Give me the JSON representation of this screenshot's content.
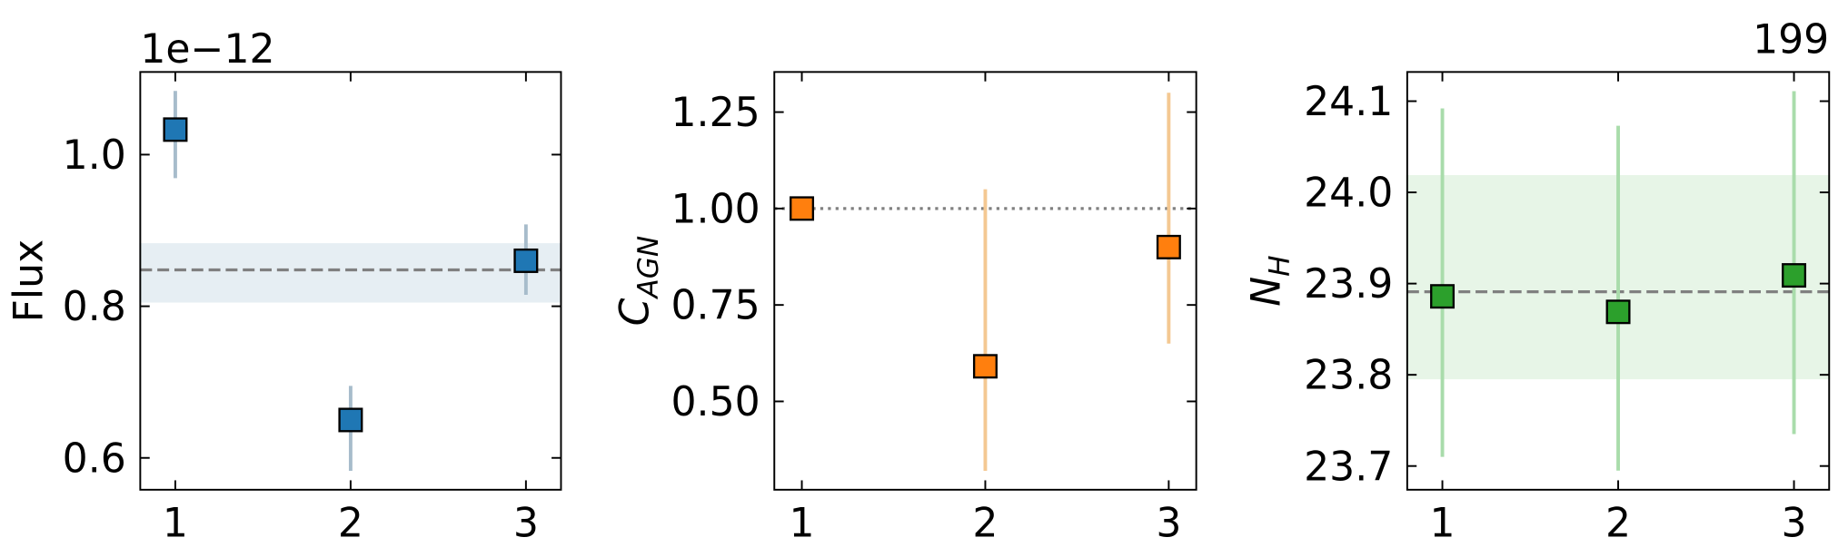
{
  "chart_data": [
    {
      "type": "scatter",
      "ylabel": {
        "text": "Flux"
      },
      "offset_label": "1e−12",
      "x": [
        1,
        2,
        3
      ],
      "values": [
        1.033,
        0.65,
        0.86
      ],
      "yerr_low": [
        0.064,
        0.067,
        0.045
      ],
      "yerr_high": [
        0.051,
        0.045,
        0.048
      ],
      "color": "#1f77b4",
      "errorbar_color": "#a7bccb",
      "hline": {
        "value": 0.848,
        "style": "dashed",
        "color": "#808080"
      },
      "band": {
        "range": [
          0.806,
          0.882
        ],
        "color": "#e6eef3"
      },
      "xlim": [
        0.8,
        3.2
      ],
      "xticks": [
        1,
        2,
        3
      ],
      "ylim": [
        0.558,
        1.109
      ],
      "yticks": [
        {
          "value": 0.6,
          "label": "0.6"
        },
        {
          "value": 0.8,
          "label": "0.8"
        },
        {
          "value": 1.0,
          "label": "1.0"
        }
      ]
    },
    {
      "type": "scatter",
      "ylabel": {
        "text": "C",
        "sub": "AGN"
      },
      "x": [
        1,
        2,
        3
      ],
      "values": [
        1.0,
        0.591,
        0.9
      ],
      "yerr_low": [
        0,
        0.271,
        0.25
      ],
      "yerr_high": [
        0,
        0.459,
        0.4
      ],
      "color": "#ff7f0e",
      "errorbar_color": "#f4c892",
      "hline": {
        "value": 1.0,
        "style": "dotted",
        "color": "#808080"
      },
      "xlim": [
        0.85,
        3.15
      ],
      "xticks": [
        1,
        2,
        3
      ],
      "ylim": [
        0.271,
        1.354
      ],
      "yticks": [
        {
          "value": 0.5,
          "label": "0.50"
        },
        0.75,
        {
          "value": 1.0,
          "label": "1.00"
        },
        1.25
      ]
    },
    {
      "type": "scatter",
      "ylabel": {
        "text": "N",
        "sub": "H"
      },
      "title": "199",
      "x": [
        1,
        2,
        3
      ],
      "values": [
        23.886,
        23.869,
        23.909
      ],
      "yerr_low": [
        0.176,
        0.174,
        0.174
      ],
      "yerr_high": [
        0.206,
        0.204,
        0.202
      ],
      "color": "#2ca02c",
      "errorbar_color": "#a9dcab",
      "hline": {
        "value": 23.891,
        "style": "dashed",
        "color": "#808080"
      },
      "band": {
        "range": [
          23.796,
          24.018
        ],
        "color": "#e7f5e7"
      },
      "xlim": [
        0.8,
        3.2
      ],
      "xticks": [
        1,
        2,
        3
      ],
      "ylim": [
        23.674,
        24.132
      ],
      "yticks": [
        23.7,
        23.8,
        23.9,
        {
          "value": 24.0,
          "label": "24.0"
        },
        24.1
      ]
    }
  ]
}
